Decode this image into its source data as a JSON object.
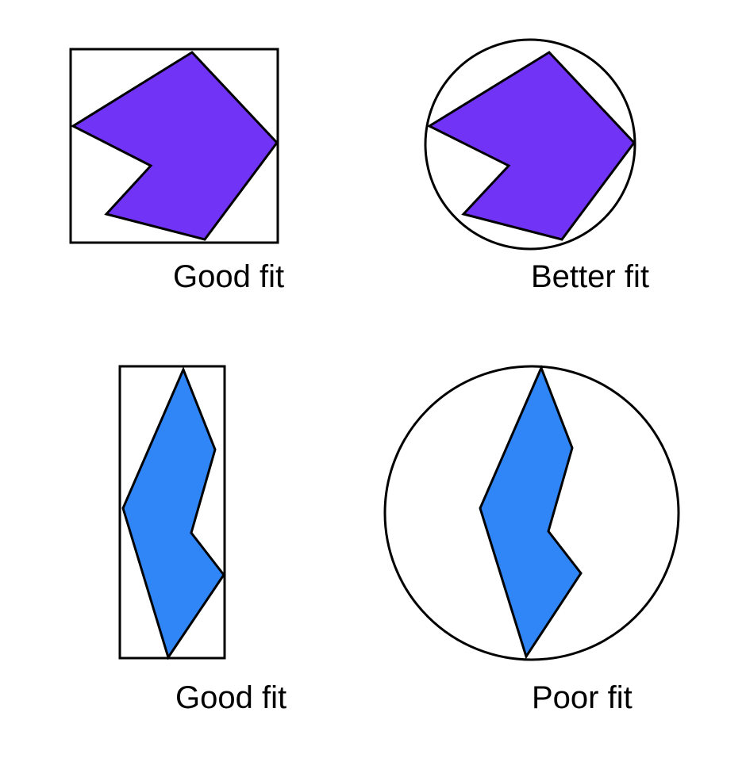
{
  "panels": [
    {
      "caption": "Good fit",
      "bounding_shape": "rectangle",
      "fill": "#7133F5"
    },
    {
      "caption": "Better fit",
      "bounding_shape": "circle",
      "fill": "#7133F5"
    },
    {
      "caption": "Good fit",
      "bounding_shape": "rectangle",
      "fill": "#3186F7"
    },
    {
      "caption": "Poor fit",
      "bounding_shape": "circle",
      "fill": "#3186F7"
    }
  ],
  "colors": {
    "stroke": "#000000",
    "background": "#ffffff"
  }
}
